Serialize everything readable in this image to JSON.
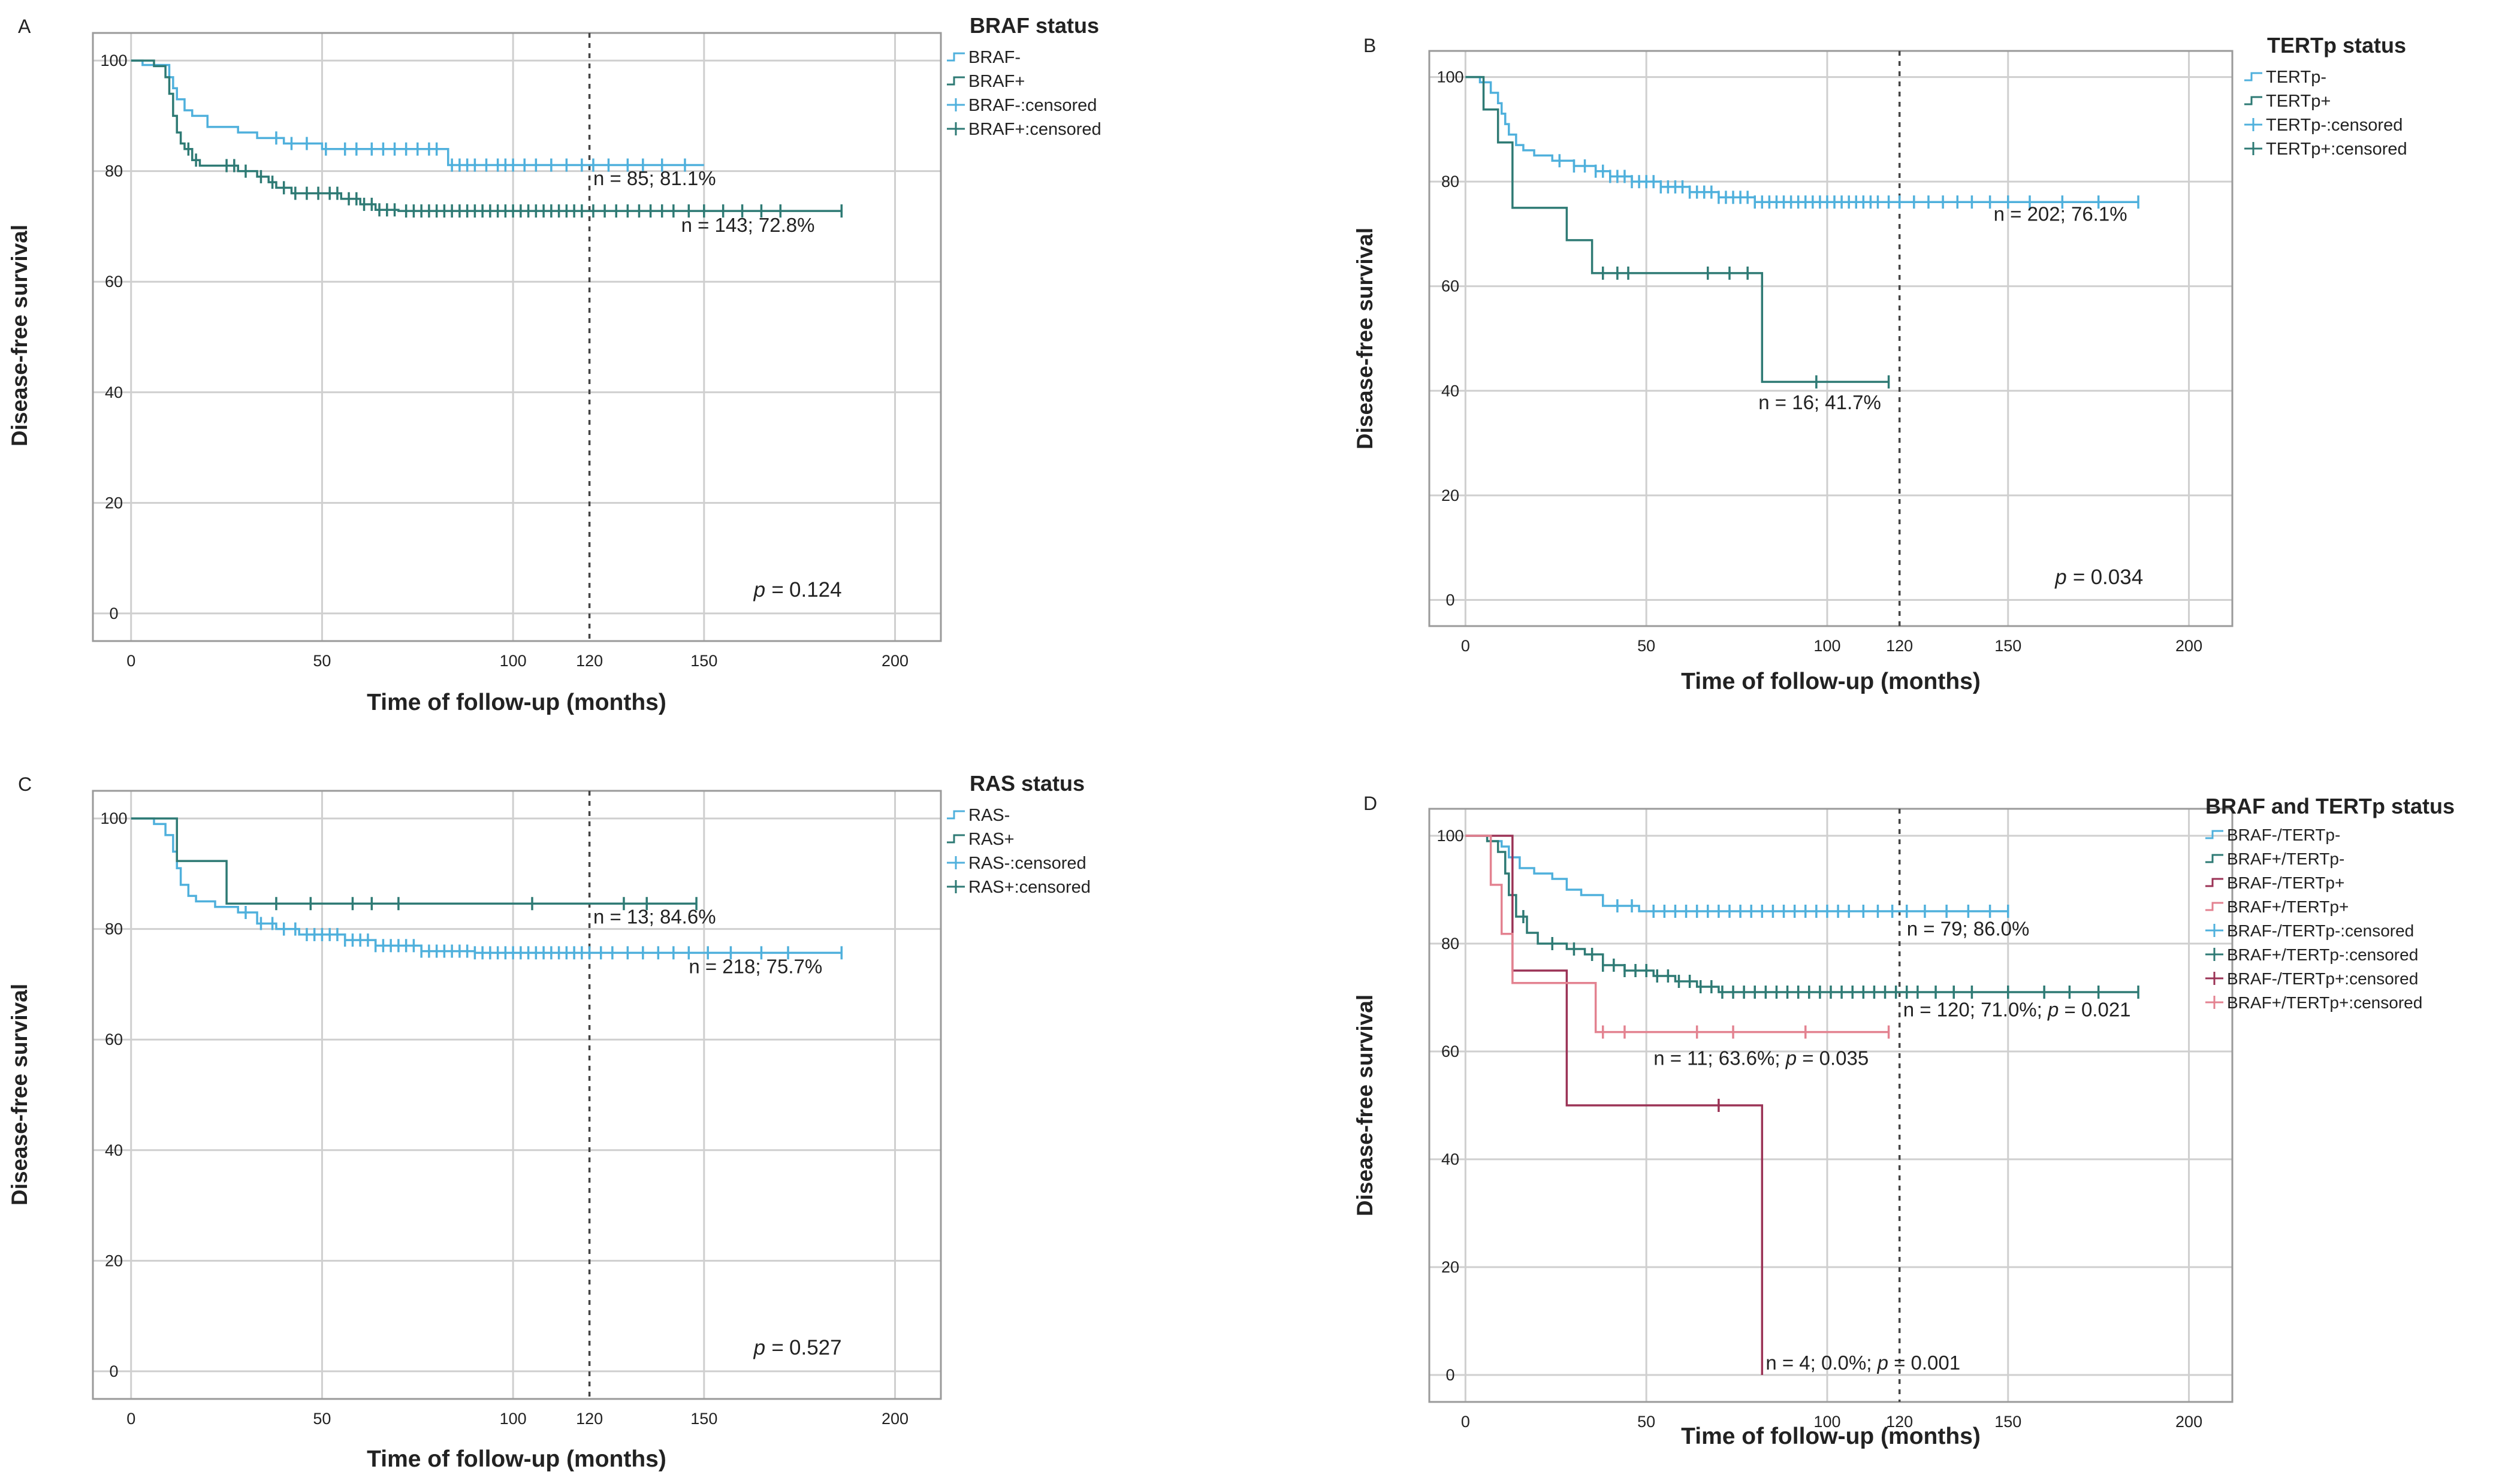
{
  "figure": {
    "colors": {
      "light_blue": "#4fb0dc",
      "dark_teal": "#2e7a74",
      "maroon": "#9b3356",
      "pink": "#e38290",
      "grid": "#cfcfcf",
      "frame": "#9a9a9a",
      "text": "#222222"
    }
  },
  "chart_data": [
    {
      "type": "line",
      "panel_label": "A",
      "legend_title": "BRAF status",
      "xlabel": "Time of follow-up (months)",
      "ylabel": "Disease-free survival",
      "xlim": [
        -10,
        212
      ],
      "ylim": [
        -5,
        105
      ],
      "x_ticks": [
        0,
        50,
        100,
        150,
        200
      ],
      "x_ref": 120,
      "x_ref_label": "120",
      "y_ticks": [
        0,
        20,
        40,
        60,
        80,
        100
      ],
      "p_value": "0.124",
      "series": [
        {
          "name": "BRAF-",
          "censored_name": "BRAF-:censored",
          "color": "#4fb0dc",
          "steps": [
            [
              0,
              100
            ],
            [
              3,
              99.2
            ],
            [
              10,
              97
            ],
            [
              11,
              95
            ],
            [
              12,
              93
            ],
            [
              14,
              91
            ],
            [
              16,
              90
            ],
            [
              20,
              88
            ],
            [
              28,
              87
            ],
            [
              33,
              86
            ],
            [
              40,
              85
            ],
            [
              50,
              84
            ],
            [
              83,
              81.1
            ],
            [
              150,
              81.1
            ]
          ],
          "censored": [
            38,
            42,
            46,
            51,
            56,
            59,
            63,
            66,
            69,
            72,
            75,
            78,
            80,
            84,
            86,
            88,
            90,
            93,
            96,
            98,
            100,
            103,
            106,
            110,
            114,
            118,
            121,
            125,
            130,
            134,
            139,
            145
          ],
          "annotation": "n = 85; 81.1%",
          "ann_x": 121,
          "ann_y": 77.5
        },
        {
          "name": "BRAF+",
          "censored_name": "BRAF+:censored",
          "color": "#2e7a74",
          "steps": [
            [
              0,
              100
            ],
            [
              6,
              99
            ],
            [
              9,
              97
            ],
            [
              10,
              94
            ],
            [
              11,
              90
            ],
            [
              12,
              87
            ],
            [
              13,
              85
            ],
            [
              14,
              84
            ],
            [
              16,
              82
            ],
            [
              18,
              81
            ],
            [
              28,
              80
            ],
            [
              33,
              79
            ],
            [
              36,
              78
            ],
            [
              38,
              77
            ],
            [
              42,
              76
            ],
            [
              55,
              75
            ],
            [
              60,
              74
            ],
            [
              64,
              73
            ],
            [
              70,
              72.8
            ],
            [
              186,
              72.8
            ]
          ],
          "censored": [
            15,
            17,
            25,
            27,
            30,
            34,
            37,
            40,
            43,
            46,
            49,
            52,
            54,
            57,
            59,
            61,
            63,
            65,
            67,
            69,
            72,
            74,
            76,
            78,
            80,
            82,
            84,
            86,
            88,
            90,
            92,
            94,
            96,
            98,
            100,
            102,
            104,
            106,
            108,
            110,
            112,
            114,
            116,
            118,
            121,
            124,
            127,
            130,
            133,
            136,
            139,
            142,
            146,
            150,
            155,
            160,
            165,
            170,
            186
          ],
          "annotation": "n = 143; 72.8%",
          "ann_x": 144,
          "ann_y": 69
        }
      ]
    },
    {
      "type": "line",
      "panel_label": "B",
      "legend_title": "TERTp status",
      "xlabel": "Time of follow-up (months)",
      "ylabel": "Disease-free survival",
      "xlim": [
        -10,
        212
      ],
      "ylim": [
        -5,
        105
      ],
      "x_ticks": [
        0,
        50,
        100,
        150,
        200
      ],
      "x_ref": 120,
      "x_ref_label": "120",
      "y_ticks": [
        0,
        20,
        40,
        60,
        80,
        100
      ],
      "p_value": "0.034",
      "series": [
        {
          "name": "TERTp-",
          "censored_name": "TERTp-:censored",
          "color": "#4fb0dc",
          "steps": [
            [
              0,
              100
            ],
            [
              4,
              99
            ],
            [
              7,
              97
            ],
            [
              9,
              95
            ],
            [
              10,
              93
            ],
            [
              11,
              91
            ],
            [
              12,
              89
            ],
            [
              14,
              87
            ],
            [
              16,
              86
            ],
            [
              19,
              85
            ],
            [
              24,
              84
            ],
            [
              30,
              83
            ],
            [
              36,
              82
            ],
            [
              40,
              81
            ],
            [
              46,
              80
            ],
            [
              54,
              79
            ],
            [
              62,
              78
            ],
            [
              70,
              77
            ],
            [
              80,
              76.1
            ],
            [
              186,
              76.1
            ]
          ],
          "censored": [
            26,
            30,
            33,
            36,
            38,
            40,
            42,
            44,
            46,
            48,
            50,
            52,
            54,
            56,
            58,
            60,
            62,
            64,
            66,
            68,
            70,
            72,
            74,
            76,
            78,
            80,
            82,
            84,
            86,
            88,
            90,
            92,
            94,
            96,
            98,
            100,
            102,
            104,
            106,
            108,
            110,
            112,
            114,
            117,
            120,
            124,
            128,
            132,
            136,
            140,
            145,
            150,
            156,
            165,
            175,
            186
          ],
          "annotation": "n = 202; 76.1%",
          "ann_x": 146,
          "ann_y": 72.5
        },
        {
          "name": "TERTp+",
          "censored_name": "TERTp+:censored",
          "color": "#2e7a74",
          "steps": [
            [
              0,
              100
            ],
            [
              5,
              93.8
            ],
            [
              9,
              87.5
            ],
            [
              13,
              75
            ],
            [
              28,
              68.8
            ],
            [
              35,
              62.5
            ],
            [
              82,
              41.7
            ],
            [
              117,
              41.7
            ]
          ],
          "censored": [
            38,
            42,
            45,
            67,
            73,
            78,
            97,
            117
          ],
          "annotation": "n = 16; 41.7%",
          "ann_x": 81,
          "ann_y": 36.5
        }
      ]
    },
    {
      "type": "line",
      "panel_label": "C",
      "legend_title": "RAS status",
      "xlabel": "Time of follow-up (months)",
      "ylabel": "Disease-free survival",
      "xlim": [
        -10,
        212
      ],
      "ylim": [
        -5,
        105
      ],
      "x_ticks": [
        0,
        50,
        100,
        150,
        200
      ],
      "x_ref": 120,
      "x_ref_label": "120",
      "y_ticks": [
        0,
        20,
        40,
        60,
        80,
        100
      ],
      "p_value": "0.527",
      "series": [
        {
          "name": "RAS-",
          "censored_name": "RAS-:censored",
          "color": "#4fb0dc",
          "steps": [
            [
              0,
              100
            ],
            [
              6,
              99
            ],
            [
              9,
              97
            ],
            [
              11,
              94
            ],
            [
              12,
              91
            ],
            [
              13,
              88
            ],
            [
              15,
              86
            ],
            [
              17,
              85
            ],
            [
              22,
              84
            ],
            [
              28,
              83
            ],
            [
              33,
              81
            ],
            [
              38,
              80
            ],
            [
              44,
              79
            ],
            [
              56,
              78
            ],
            [
              64,
              77
            ],
            [
              76,
              76
            ],
            [
              90,
              75.7
            ],
            [
              186,
              75.7
            ]
          ],
          "censored": [
            30,
            34,
            37,
            40,
            43,
            46,
            48,
            50,
            52,
            54,
            56,
            58,
            60,
            62,
            64,
            66,
            68,
            70,
            72,
            74,
            76,
            78,
            80,
            82,
            84,
            86,
            88,
            90,
            92,
            94,
            96,
            98,
            100,
            102,
            104,
            106,
            108,
            110,
            112,
            114,
            116,
            118,
            120,
            123,
            126,
            130,
            134,
            138,
            142,
            146,
            151,
            157,
            165,
            172,
            186
          ],
          "annotation": "n = 218; 75.7%",
          "ann_x": 146,
          "ann_y": 72
        },
        {
          "name": "RAS+",
          "censored_name": "RAS+:censored",
          "color": "#2e7a74",
          "steps": [
            [
              0,
              100
            ],
            [
              12,
              92.3
            ],
            [
              25,
              84.6
            ],
            [
              148,
              84.6
            ]
          ],
          "censored": [
            38,
            47,
            58,
            63,
            70,
            105,
            129,
            135,
            148
          ],
          "annotation": "n = 13; 84.6%",
          "ann_x": 121,
          "ann_y": 81
        }
      ]
    },
    {
      "type": "line",
      "panel_label": "D",
      "legend_title": "BRAF and TERTp status",
      "xlabel": "Time of follow-up (months)",
      "ylabel": "Disease-free survival",
      "xlim": [
        -10,
        212
      ],
      "ylim": [
        -5,
        105
      ],
      "x_ticks": [
        0,
        50,
        100,
        150,
        200
      ],
      "x_ref": 120,
      "x_ref_label": "120",
      "y_ticks": [
        0,
        20,
        40,
        60,
        80,
        100
      ],
      "p_value": "",
      "series": [
        {
          "name": "BRAF-/TERTp-",
          "censored_name": "BRAF-/TERTp-:censored",
          "color": "#4fb0dc",
          "steps": [
            [
              0,
              100
            ],
            [
              7,
              99
            ],
            [
              10,
              98
            ],
            [
              12,
              96
            ],
            [
              15,
              94
            ],
            [
              19,
              93
            ],
            [
              24,
              92
            ],
            [
              28,
              90
            ],
            [
              32,
              89
            ],
            [
              38,
              87
            ],
            [
              48,
              86
            ],
            [
              150,
              86
            ]
          ],
          "censored": [
            42,
            46,
            52,
            55,
            58,
            61,
            64,
            67,
            70,
            73,
            76,
            79,
            82,
            85,
            88,
            91,
            94,
            97,
            100,
            103,
            106,
            110,
            114,
            118,
            122,
            127,
            133,
            139,
            145,
            150
          ],
          "annotation": "n = 79; 86.0%",
          "ann_x": 122,
          "ann_y": 81.5
        },
        {
          "name": "BRAF+/TERTp-",
          "censored_name": "BRAF+/TERTp-:censored",
          "color": "#2e7a74",
          "steps": [
            [
              0,
              100
            ],
            [
              6,
              99
            ],
            [
              9,
              97
            ],
            [
              11,
              93
            ],
            [
              12,
              89
            ],
            [
              14,
              85
            ],
            [
              17,
              82
            ],
            [
              20,
              80
            ],
            [
              28,
              79
            ],
            [
              33,
              78
            ],
            [
              38,
              76
            ],
            [
              44,
              75
            ],
            [
              52,
              74
            ],
            [
              58,
              73
            ],
            [
              64,
              72
            ],
            [
              70,
              71
            ],
            [
              186,
              71
            ]
          ],
          "censored": [
            16,
            24,
            30,
            35,
            38,
            41,
            44,
            47,
            50,
            53,
            56,
            59,
            62,
            65,
            68,
            71,
            74,
            77,
            80,
            83,
            86,
            89,
            92,
            95,
            98,
            101,
            104,
            107,
            110,
            113,
            116,
            119,
            122,
            125,
            130,
            135,
            140,
            150,
            160,
            167,
            175,
            186
          ],
          "annotation_parts": [
            "n = 120; 71.0%; ",
            "p",
            " = 0.021"
          ],
          "ann_x": 121,
          "ann_y": 66.5
        },
        {
          "name": "BRAF-/TERTp+",
          "censored_name": "BRAF-/TERTp+:censored",
          "color": "#9b3356",
          "steps": [
            [
              0,
              100
            ],
            [
              13,
              75
            ],
            [
              28,
              50
            ],
            [
              82,
              0
            ]
          ],
          "censored": [
            70
          ],
          "annotation_parts": [
            "n = 4; 0.0%; ",
            "p",
            " = 0.001"
          ],
          "ann_x": 83,
          "ann_y": 1
        },
        {
          "name": "BRAF+/TERTp+",
          "censored_name": "BRAF+/TERTp+:censored",
          "color": "#e38290",
          "steps": [
            [
              0,
              100
            ],
            [
              7,
              90.9
            ],
            [
              10,
              81.8
            ],
            [
              13,
              72.7
            ],
            [
              36,
              63.6
            ],
            [
              117,
              63.6
            ]
          ],
          "censored": [
            38,
            44,
            64,
            74,
            94,
            117
          ],
          "annotation_parts": [
            "n = 11; 63.6%; ",
            "p",
            " = 0.035"
          ],
          "ann_x": 52,
          "ann_y": 57.5
        }
      ]
    }
  ]
}
